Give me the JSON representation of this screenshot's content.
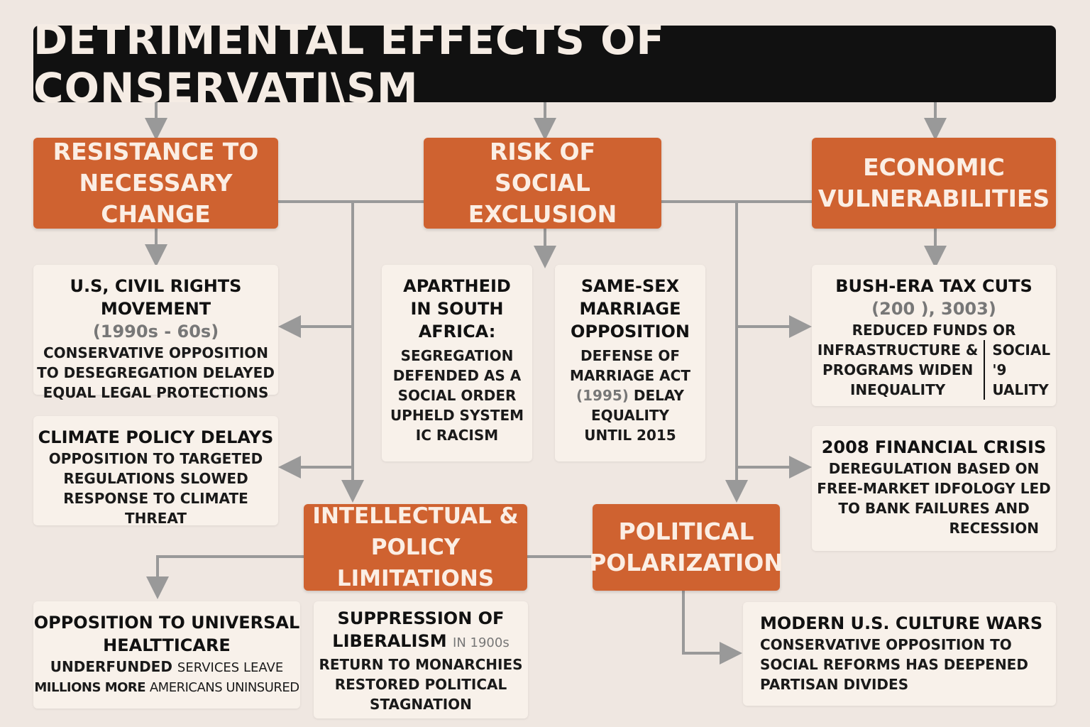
{
  "title": "DETRIMENTAL EFFECTS OF CONSERVATI\\SM",
  "colors": {
    "accent": "#cf6230",
    "background": "#efe7e1",
    "title_bar": "#111111",
    "connector": "#999999"
  },
  "categories": [
    {
      "id": "resistance",
      "label": "RESISTANCE TO NECESSARY CHANGE"
    },
    {
      "id": "exclusion",
      "label": "RISK OF SOCIAL EXCLUSION"
    },
    {
      "id": "economic",
      "label": "ECONOMIC VULNERABILITIES"
    },
    {
      "id": "intellectual",
      "label": "INTELLECTUAL & POLICY LIMITATIONS"
    },
    {
      "id": "polarization",
      "label": "POLITICAL POLARIZATION"
    }
  ],
  "cards": {
    "civil_rights": {
      "title": "U.S, CIVIL RIGHTS MOVEMENT",
      "date": "(1990s - 60s)",
      "body": [
        "CONSERVATIVE OPPOSITION",
        "TO DESEGREGATION DELAYED",
        "EQUAL LEGAL PROTECTIONS"
      ]
    },
    "climate": {
      "title": "CLIMATE POLICY DELAYS",
      "body": [
        "OPPOSITION TO TARGETED",
        "REGULATIONS SLOWED",
        "RESPONSE TO CLIMATE THREAT"
      ]
    },
    "apartheid": {
      "title": [
        "APARTHEID",
        "IN SOUTH",
        "AFRICA:"
      ],
      "body": [
        "SEGREGATION",
        "DEFENDED AS A",
        "SOCIAL ORDER",
        "UPHELD SYSTEM",
        "IC RACISM"
      ]
    },
    "same_sex": {
      "title": [
        "SAME-SEX",
        "MARRIAGE",
        "OPPOSITION"
      ],
      "body": [
        "DEFENSE OF",
        "MARRIAGE ACT"
      ],
      "date": "(1995)",
      "body2": [
        "DELAY",
        "EQUALITY",
        "UNTIL 2015"
      ]
    },
    "tax_cuts": {
      "title": "BUSH-ERA TAX CUTS",
      "date": "(200 ), 3003)",
      "body": "REDUCED FUNDS OR",
      "left": [
        "INFRASTRUCTURE &",
        "PROGRAMS WIDEN",
        "INEQUALITY"
      ],
      "right": [
        "SOCIAL",
        "'9",
        "UALITY"
      ]
    },
    "financial": {
      "title": "2008 FINANCIAL CRISIS",
      "body": [
        "DEREGULATION BASED ON",
        "FREE-MARKET IDFOLOGY LED",
        "TO BANK FAILURES AND",
        "RECESSION"
      ]
    },
    "healthcare": {
      "title": [
        "OPPOSITION TO UNIVERSAL",
        "HEALTTICARE"
      ],
      "b1": "UNDERFUNDED",
      "t1": "SERVICES LEAVE",
      "b2": "MILLIONS MORE",
      "t2": "AMERICANS UNINSURED"
    },
    "liberalism": {
      "title1": "SUPPRESSION OF",
      "title2": "LIBERALISM",
      "date": "IN 1900s",
      "body": [
        "RETURN TO MONARCHIES",
        "RESTORED POLITICAL",
        "STAGNATION"
      ]
    },
    "culture_wars": {
      "title": "MODERN U.S. CULTURE WARS",
      "body": [
        "CONSERVATIVE OPPOSITION TO",
        "SOCIAL REFORMS HAS DEEPENED",
        "PARTISAN DIVIDES"
      ]
    }
  }
}
